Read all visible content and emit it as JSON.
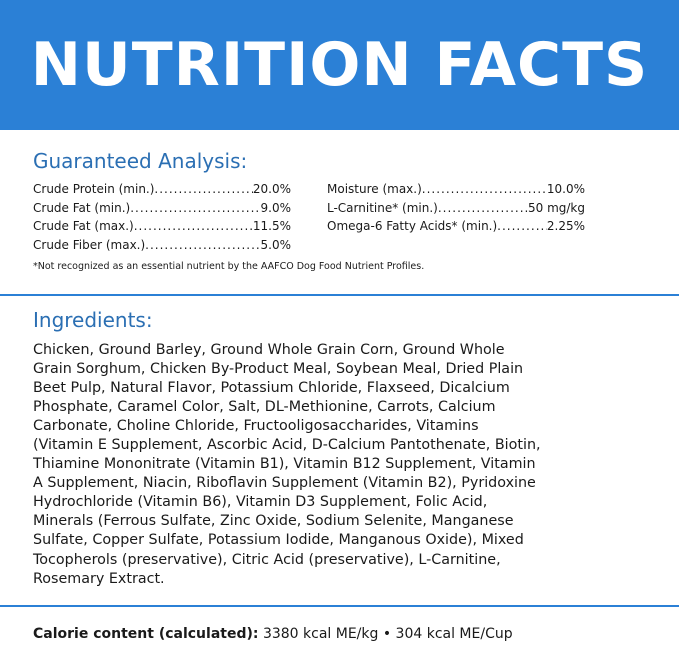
{
  "header": {
    "title": "NUTRITION FACTS"
  },
  "analysis": {
    "heading": "Guaranteed Analysis:",
    "left": [
      {
        "label": "Crude Protein (min.)",
        "value": "20.0%"
      },
      {
        "label": "Crude Fat (min.)",
        "value": "9.0%"
      },
      {
        "label": "Crude Fat (max.)",
        "value": "11.5%"
      },
      {
        "label": "Crude Fiber (max.)",
        "value": "5.0%"
      }
    ],
    "right": [
      {
        "label": "Moisture (max.)",
        "value": "10.0%"
      },
      {
        "label": "L-Carnitine* (min.)",
        "value": "50 mg/kg"
      },
      {
        "label": "Omega-6 Fatty Acids* (min.)",
        "value": "2.25%"
      }
    ],
    "footnote": "*Not recognized as an essential nutrient by the AAFCO Dog Food Nutrient Profiles."
  },
  "ingredients": {
    "heading": "Ingredients:",
    "lines": [
      "Chicken, Ground Barley, Ground Whole Grain Corn, Ground Whole",
      "Grain Sorghum, Chicken By-Product Meal, Soybean Meal, Dried Plain",
      "Beet Pulp, Natural Flavor, Potassium Chloride, Flaxseed, Dicalcium",
      "Phosphate, Caramel Color, Salt, DL-Methionine, Carrots, Calcium",
      "Carbonate, Choline Chloride, Fructooligosaccharides, Vitamins",
      "(Vitamin E Supplement, Ascorbic Acid, D-Calcium Pantothenate, Biotin,",
      "Thiamine Mononitrate (Vitamin B1), Vitamin B12 Supplement, Vitamin",
      "A Supplement, Niacin, Riboflavin Supplement (Vitamin B2), Pyridoxine",
      "Hydrochloride (Vitamin B6), Vitamin D3 Supplement, Folic Acid,",
      "Minerals (Ferrous Sulfate, Zinc Oxide, Sodium Selenite, Manganese",
      "Sulfate, Copper Sulfate, Potassium Iodide, Manganous Oxide), Mixed",
      "Tocopherols (preservative), Citric Acid (preservative), L-Carnitine,",
      "Rosemary Extract."
    ]
  },
  "calorie": {
    "label": "Calorie content (calculated):",
    "value": "3380 kcal ME/kg • 304 kcal ME/Cup"
  }
}
